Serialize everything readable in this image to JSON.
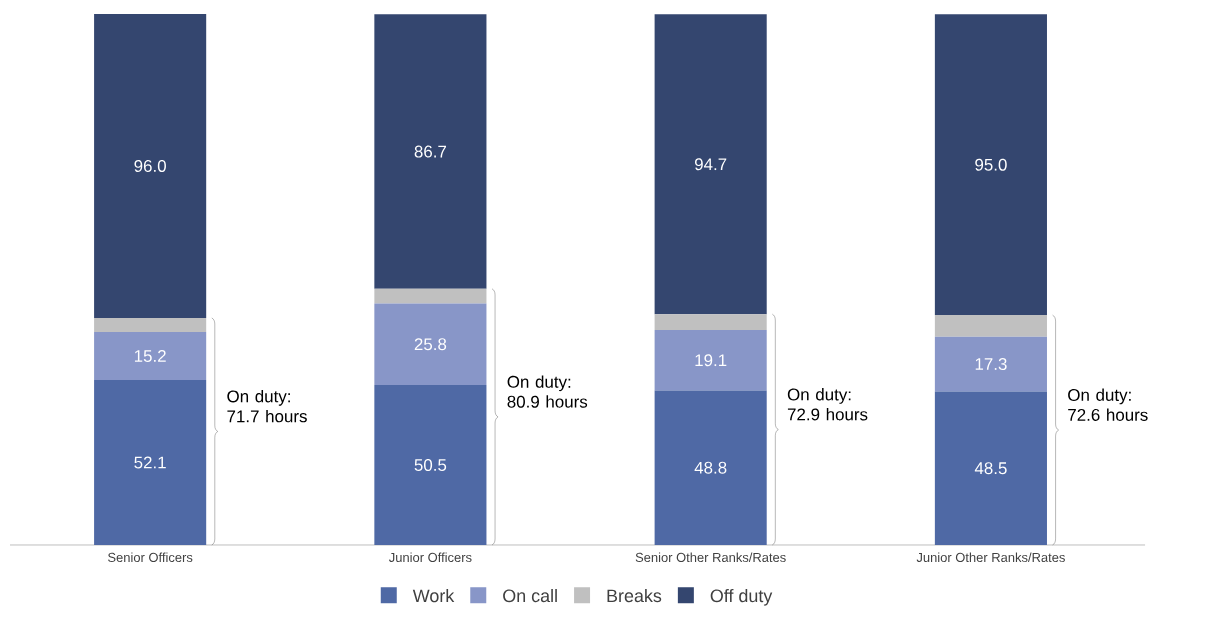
{
  "chart_data": {
    "type": "bar",
    "stacked": true,
    "legend": "bottom",
    "categories": [
      "Senior Officers",
      "Junior Officers",
      "Senior Other Ranks/Rates",
      "Junior Other Ranks/Rates"
    ],
    "series": [
      {
        "name": "Work",
        "color": "#4f69a5",
        "values": [
          52.1,
          50.5,
          48.8,
          48.5
        ],
        "value_labels": [
          "52.1",
          "50.5",
          "48.8",
          "48.5"
        ]
      },
      {
        "name": "On call",
        "color": "#8896c8",
        "values": [
          15.2,
          25.8,
          19.1,
          17.3
        ],
        "value_labels": [
          "15.2",
          "25.8",
          "19.1",
          "17.3"
        ]
      },
      {
        "name": "Breaks",
        "color": "#c0c0c0",
        "values": [
          4.4,
          4.6,
          5.0,
          6.8
        ]
      },
      {
        "name": "Off duty",
        "color": "#34466f",
        "values": [
          96.0,
          86.7,
          94.7,
          95.0
        ],
        "value_labels": [
          "96.0",
          "86.7",
          "94.7",
          "95.0"
        ]
      }
    ],
    "annotations": [
      "On duty: 71.7 hours",
      "On duty: 80.9 hours",
      "On duty: 72.9 hours",
      "On duty: 72.6 hours"
    ]
  }
}
